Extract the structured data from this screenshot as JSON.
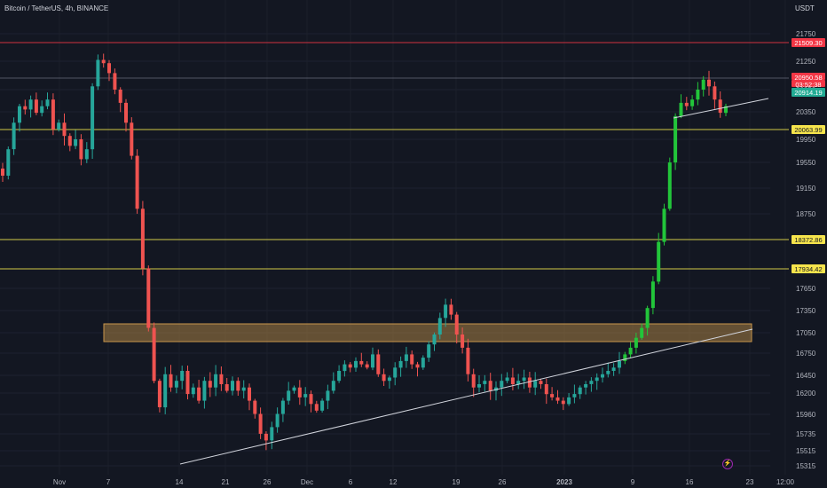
{
  "title": "Bitcoin / TetherUS, 4h, BINANCE",
  "currency": "USDT",
  "colors": {
    "background": "#131722",
    "up": "#26a69a",
    "up_bright": "#22c53a",
    "down": "#ef5350",
    "level_yellow": "#f2e94e",
    "level_red": "#f23645",
    "zone": "#c8964b",
    "trendline": "#d1d4dc"
  },
  "chart_data": {
    "type": "candlestick",
    "symbol": "BTCUSDT",
    "timeframe": "4h",
    "exchange": "BINANCE",
    "y_ticks": [
      21750,
      21250,
      20850,
      20350,
      19950,
      19550,
      19150,
      18750,
      18350,
      17650,
      17350,
      17050,
      16750,
      16450,
      16200,
      15960,
      15735,
      15515,
      15315
    ],
    "x_ticks": [
      "Nov",
      "7",
      "14",
      "21",
      "26",
      "Dec",
      "6",
      "12",
      "19",
      "26",
      "2023",
      "9",
      "16",
      "23",
      "12:00"
    ],
    "price_tags": [
      {
        "label": "21509.30",
        "kind": "red"
      },
      {
        "label": "20950.58",
        "kind": "red"
      },
      {
        "label": "03:52:38",
        "kind": "red"
      },
      {
        "label": "20914.19",
        "kind": "green"
      },
      {
        "label": "20063.99",
        "kind": "yellow"
      },
      {
        "label": "18372.86",
        "kind": "yellow"
      },
      {
        "label": "17934.42",
        "kind": "yellow"
      }
    ],
    "levels": [
      {
        "price": 21509.3,
        "color": "red"
      },
      {
        "price": 20063.99,
        "color": "yellow"
      },
      {
        "price": 18372.86,
        "color": "yellow"
      },
      {
        "price": 17934.42,
        "color": "yellow"
      },
      {
        "price": 20950.58,
        "color": "gray"
      }
    ],
    "zone": {
      "from": 16920,
      "to": 17150
    },
    "trendlines": [
      {
        "from": [
          "Nov 16",
          15380
        ],
        "to": [
          "Jan 22",
          17110
        ]
      },
      {
        "from": [
          "Jan 13",
          20400
        ],
        "to": [
          "Jan 21",
          20790
        ]
      }
    ],
    "closes": [
      19900,
      20300,
      20700,
      20950,
      20900,
      21050,
      20850,
      20950,
      21050,
      20600,
      20700,
      20500,
      20350,
      20450,
      20150,
      20300,
      21250,
      21650,
      21600,
      21450,
      21200,
      21000,
      20700,
      20200,
      19400,
      18500,
      17600,
      16800,
      16400,
      16900,
      16700,
      16800,
      16950,
      16600,
      16700,
      16500,
      16800,
      16700,
      16900,
      16750,
      16650,
      16800,
      16650,
      16700,
      16500,
      16300,
      16000,
      15900,
      16100,
      16300,
      16500,
      16650,
      16700,
      16550,
      16600,
      16450,
      16350,
      16500,
      16650,
      16800,
      16950,
      17050,
      17000,
      17100,
      17050,
      17000,
      17200,
      16900,
      16800,
      16850,
      17000,
      17100,
      17200,
      17050,
      17000,
      17150,
      17350,
      17500,
      17750,
      17950,
      17800,
      17500,
      17300,
      16900,
      16700,
      16750,
      16800,
      16650,
      16700,
      16800,
      16850,
      16750,
      16800,
      16850,
      16700,
      16800,
      16750,
      16600,
      16550,
      16500,
      16450,
      16550,
      16600,
      16700,
      16750,
      16800,
      16850,
      16900,
      16950,
      17000,
      17100,
      17200,
      17300,
      17450,
      17600,
      17900,
      18300,
      18900,
      19400,
      20100,
      20800,
      21000,
      20950,
      21050,
      21200,
      21350,
      21250,
      21050,
      20850,
      20950
    ]
  }
}
